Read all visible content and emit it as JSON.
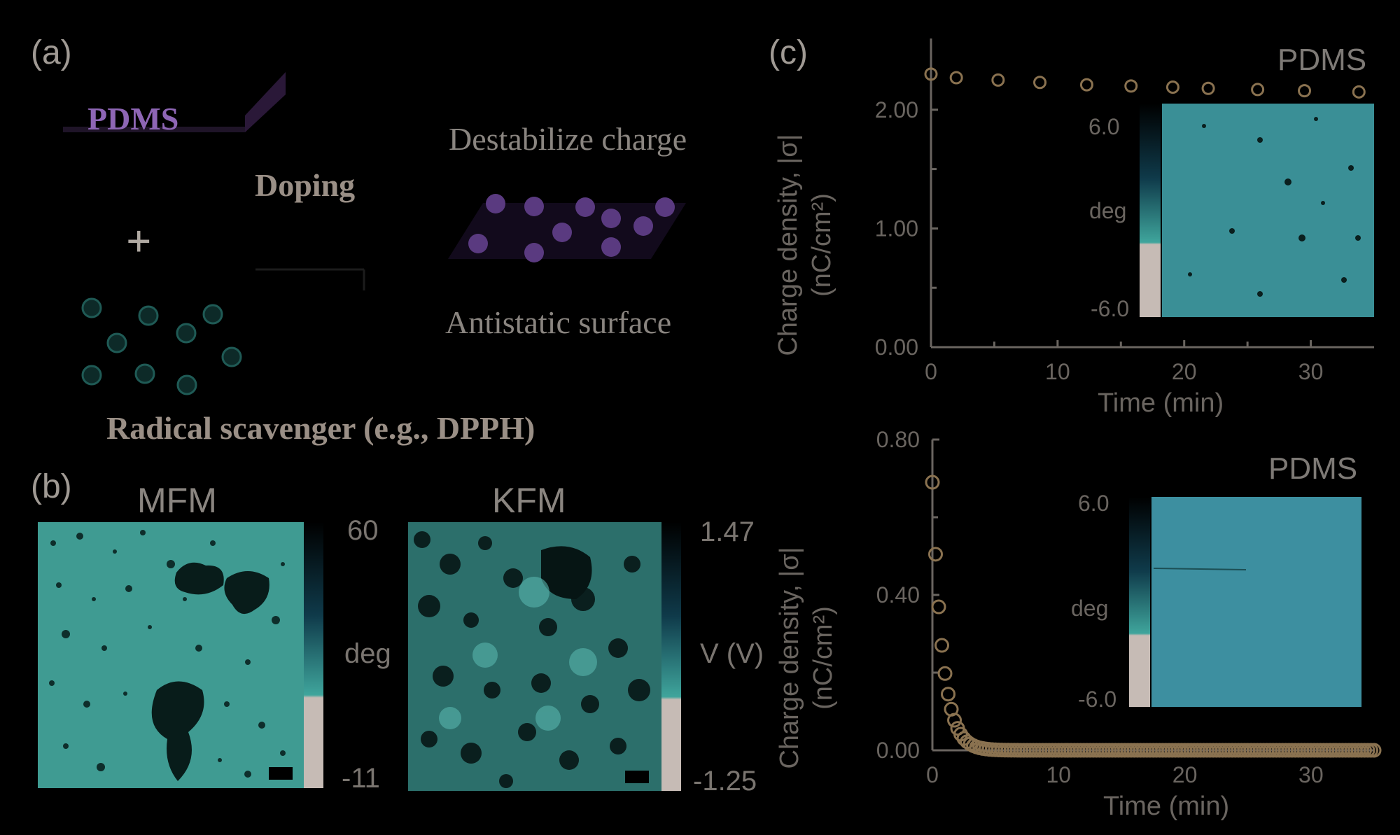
{
  "panel_labels": {
    "a": "(a)",
    "b": "(b)",
    "c": "(c)"
  },
  "schematic": {
    "pdms_label": "PDMS",
    "plus": "+",
    "doping": "Doping",
    "destabilize": "Destabilize charge",
    "antistatic": "Antistatic surface",
    "scavenger": "Radical scavenger (e.g., DPPH)"
  },
  "images": {
    "mfm": {
      "title": "MFM",
      "cb_max": "60",
      "cb_unit": "deg",
      "cb_min": "-11"
    },
    "kfm": {
      "title": "KFM",
      "cb_max": "1.47",
      "cb_unit": "V (V)",
      "cb_min": "-1.25"
    }
  },
  "colors": {
    "teal": "#3fa59c",
    "brown_marker": "#8a7250",
    "purple": "#7a4f9e"
  },
  "chart_data": [
    {
      "type": "scatter",
      "xlabel": "Time (min)",
      "ylabel": "Charge density, |σ| (nC/cm²)",
      "xticks": [
        "0",
        "10",
        "20",
        "30"
      ],
      "yticks": [
        "0.00",
        "1.00",
        "2.00"
      ],
      "xlim": [
        0,
        35
      ],
      "ylim": [
        0,
        2.6
      ],
      "series": [
        {
          "x": [
            0,
            2,
            5.3,
            8.6,
            12.3,
            15.8,
            19.1,
            21.9,
            25.8,
            29.5,
            33.8
          ],
          "y": [
            2.3,
            2.27,
            2.25,
            2.23,
            2.21,
            2.2,
            2.19,
            2.18,
            2.17,
            2.16,
            2.15
          ]
        }
      ],
      "inset": {
        "title": "PDMS",
        "cb_max": "6.0",
        "cb_unit": "deg",
        "cb_min": "-6.0"
      }
    },
    {
      "type": "scatter",
      "xlabel": "Time (min)",
      "ylabel": "Charge density, |σ| (nC/cm²)",
      "xticks": [
        "0",
        "10",
        "20",
        "30"
      ],
      "yticks": [
        "0.00",
        "0.40",
        "0.80"
      ],
      "xlim": [
        0,
        35
      ],
      "ylim": [
        0,
        0.8
      ],
      "decay": {
        "y0": 0.69,
        "tau_min": 0.8,
        "step_min": 0.25,
        "t_end": 35
      },
      "inset": {
        "title": "PDMS",
        "cb_max": "6.0",
        "cb_unit": "deg",
        "cb_min": "-6.0"
      }
    }
  ]
}
